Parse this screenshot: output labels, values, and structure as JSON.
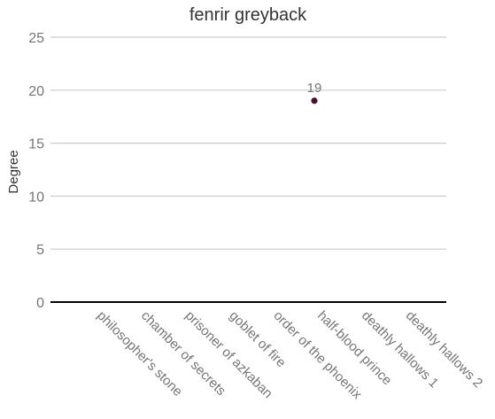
{
  "chart_data": {
    "type": "scatter",
    "title": "fenrir greyback",
    "xlabel": "",
    "ylabel": "Degree",
    "ylim": [
      0,
      25
    ],
    "yticks": [
      0,
      5,
      10,
      15,
      20,
      25
    ],
    "grid": true,
    "legend": "none",
    "categories": [
      "philosopher's stone",
      "chamber of secrets",
      "prisoner of azkaban",
      "goblet of fire",
      "order of the phoenix",
      "half-blood prince",
      "deathly hallows 1",
      "deathly hallows 2"
    ],
    "series": [
      {
        "values": [
          null,
          null,
          null,
          null,
          null,
          19,
          null,
          null
        ],
        "labels": [
          "",
          "",
          "",
          "",
          "",
          "19",
          "",
          ""
        ],
        "color": "#4a0f2e"
      }
    ]
  }
}
